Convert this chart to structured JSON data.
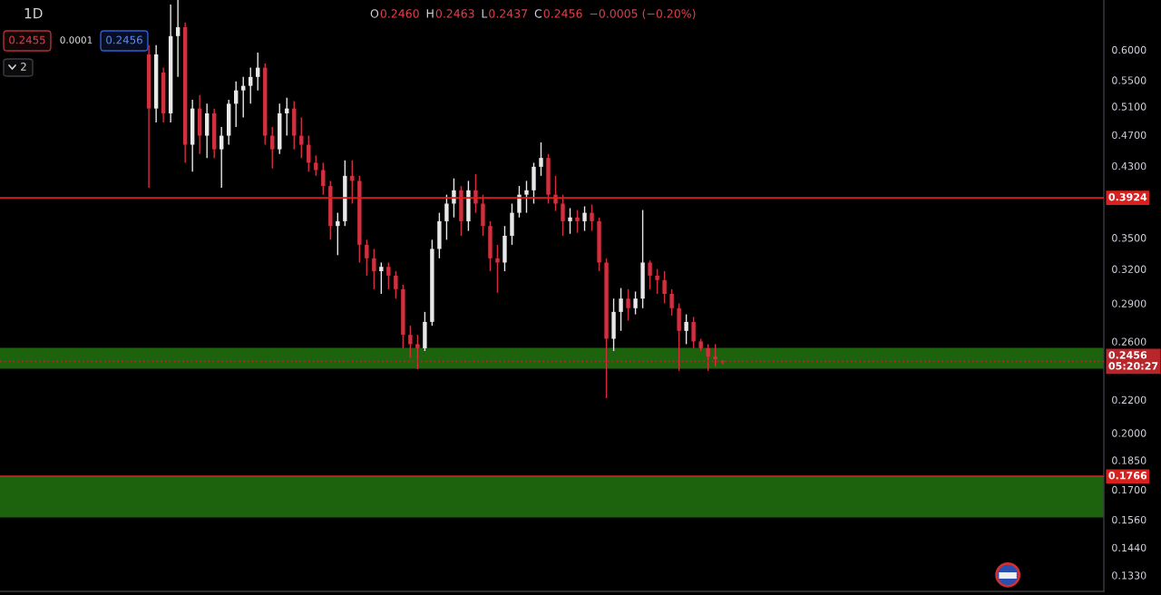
{
  "chart_data": {
    "type": "candlestick",
    "title": "1D",
    "categories": [
      null,
      null,
      null,
      null,
      null,
      null,
      null,
      null,
      null,
      null,
      null,
      null,
      null,
      null,
      null,
      null,
      null,
      null,
      null,
      null,
      null,
      null,
      null,
      null,
      null,
      null,
      null,
      null,
      null,
      null,
      null,
      null,
      null,
      null,
      null,
      null,
      null,
      null,
      null,
      null,
      null,
      null,
      null,
      null,
      null,
      null,
      null,
      null,
      null,
      null,
      null,
      null,
      null,
      null,
      null,
      null,
      null,
      null,
      null,
      null,
      null,
      null,
      null,
      null,
      null,
      null,
      null,
      null,
      null,
      null,
      null,
      null,
      null,
      null,
      null,
      null,
      null,
      null,
      null,
      null,
      null,
      null,
      null,
      null,
      null,
      null,
      null,
      null,
      null,
      null,
      null,
      null,
      null,
      null,
      null,
      null,
      null,
      null,
      null,
      null,
      null,
      null,
      null,
      null,
      null,
      null,
      null,
      null,
      null,
      null,
      null,
      null,
      null,
      null,
      null,
      null,
      null,
      null,
      null,
      null,
      null,
      null,
      null,
      null,
      null,
      null,
      null,
      null,
      null,
      null,
      null,
      null,
      null,
      null,
      null,
      null,
      null,
      null,
      null,
      null,
      null,
      null,
      null,
      null,
      null,
      null,
      null,
      null,
      null,
      null,
      null,
      null
    ],
    "ohlc": [
      null,
      null,
      null,
      null,
      null,
      null,
      null,
      null,
      null,
      null,
      null,
      null,
      null,
      null,
      null,
      null,
      null,
      null,
      null,
      null,
      [
        0.592,
        0.608,
        0.404,
        0.507
      ],
      [
        0.507,
        0.608,
        0.487,
        0.592
      ],
      [
        0.562,
        0.57,
        0.487,
        0.5
      ],
      [
        0.5,
        0.683,
        0.487,
        0.624
      ],
      [
        0.624,
        0.692,
        0.555,
        0.64
      ],
      [
        0.64,
        0.649,
        0.434,
        0.457
      ],
      [
        0.457,
        0.52,
        0.423,
        0.507
      ],
      [
        0.507,
        0.527,
        0.445,
        0.469
      ],
      [
        0.469,
        0.514,
        0.44,
        0.5
      ],
      [
        0.5,
        0.507,
        0.44,
        0.451
      ],
      [
        0.451,
        0.481,
        0.404,
        0.469
      ],
      [
        0.469,
        0.52,
        0.457,
        0.514
      ],
      [
        0.514,
        0.548,
        0.481,
        0.534
      ],
      [
        0.534,
        0.555,
        0.494,
        0.541
      ],
      [
        0.541,
        0.57,
        0.514,
        0.555
      ],
      [
        0.555,
        0.595,
        0.534,
        0.57
      ],
      [
        0.57,
        0.577,
        0.457,
        0.469
      ],
      [
        0.469,
        0.481,
        0.427,
        0.451
      ],
      [
        0.451,
        0.514,
        0.445,
        0.5
      ],
      [
        0.5,
        0.523,
        0.469,
        0.507
      ],
      [
        0.507,
        0.518,
        0.451,
        0.469
      ],
      [
        0.469,
        0.494,
        0.44,
        0.457
      ],
      [
        0.457,
        0.469,
        0.423,
        0.434
      ],
      [
        0.434,
        0.443,
        0.418,
        0.425
      ],
      [
        0.425,
        0.434,
        0.396,
        0.406
      ],
      [
        0.406,
        0.412,
        0.348,
        0.362
      ],
      [
        0.362,
        0.376,
        0.333,
        0.367
      ],
      [
        0.367,
        0.437,
        0.362,
        0.418
      ],
      [
        0.418,
        0.437,
        0.386,
        0.412
      ],
      [
        0.412,
        0.418,
        0.326,
        0.343
      ],
      [
        0.343,
        0.348,
        0.314,
        0.33
      ],
      [
        0.33,
        0.339,
        0.302,
        0.318
      ],
      [
        0.318,
        0.326,
        0.298,
        0.322
      ],
      [
        0.322,
        0.326,
        0.302,
        0.314
      ],
      [
        0.314,
        0.318,
        0.294,
        0.302
      ],
      [
        0.302,
        0.306,
        0.255,
        0.265
      ],
      [
        0.265,
        0.272,
        0.248,
        0.258
      ],
      [
        0.258,
        0.265,
        0.24,
        0.255
      ],
      [
        0.255,
        0.283,
        0.253,
        0.275
      ],
      [
        0.275,
        0.348,
        0.272,
        0.339
      ],
      [
        0.339,
        0.376,
        0.33,
        0.367
      ],
      [
        0.367,
        0.396,
        0.348,
        0.386
      ],
      [
        0.386,
        0.415,
        0.371,
        0.401
      ],
      [
        0.401,
        0.406,
        0.352,
        0.367
      ],
      [
        0.367,
        0.412,
        0.357,
        0.401
      ],
      [
        0.401,
        0.42,
        0.376,
        0.386
      ],
      [
        0.386,
        0.396,
        0.352,
        0.362
      ],
      [
        0.362,
        0.367,
        0.318,
        0.33
      ],
      [
        0.33,
        0.343,
        0.299,
        0.326
      ],
      [
        0.326,
        0.362,
        0.318,
        0.352
      ],
      [
        0.352,
        0.386,
        0.343,
        0.376
      ],
      [
        0.376,
        0.406,
        0.371,
        0.396
      ],
      [
        0.396,
        0.412,
        0.376,
        0.401
      ],
      [
        0.401,
        0.434,
        0.386,
        0.429
      ],
      [
        0.429,
        0.46,
        0.418,
        0.44
      ],
      [
        0.44,
        0.445,
        0.386,
        0.396
      ],
      [
        0.396,
        0.418,
        0.378,
        0.386
      ],
      [
        0.386,
        0.396,
        0.352,
        0.367
      ],
      [
        0.367,
        0.381,
        0.354,
        0.371
      ],
      [
        0.371,
        0.379,
        0.355,
        0.367
      ],
      [
        0.367,
        0.383,
        0.357,
        0.376
      ],
      [
        0.376,
        0.385,
        0.357,
        0.367
      ],
      [
        0.367,
        0.371,
        0.318,
        0.326
      ],
      [
        0.326,
        0.33,
        0.221,
        0.262
      ],
      [
        0.262,
        0.294,
        0.253,
        0.283
      ],
      [
        0.283,
        0.303,
        0.268,
        0.294
      ],
      [
        0.294,
        0.302,
        0.276,
        0.286
      ],
      [
        0.286,
        0.3,
        0.281,
        0.294
      ],
      [
        0.294,
        0.379,
        0.286,
        0.326
      ],
      [
        0.326,
        0.328,
        0.302,
        0.314
      ],
      [
        0.314,
        0.32,
        0.298,
        0.31
      ],
      [
        0.31,
        0.318,
        0.29,
        0.298
      ],
      [
        0.298,
        0.302,
        0.28,
        0.286
      ],
      [
        0.286,
        0.29,
        0.239,
        0.268
      ],
      [
        0.268,
        0.281,
        0.258,
        0.275
      ],
      [
        0.275,
        0.279,
        0.255,
        0.26
      ],
      [
        0.26,
        0.262,
        0.253,
        0.255
      ],
      [
        0.255,
        0.258,
        0.239,
        0.249
      ],
      [
        0.249,
        0.258,
        0.242,
        0.247
      ],
      [
        0.246,
        0.2463,
        0.2437,
        0.2456
      ],
      null,
      null,
      null,
      null,
      null,
      null,
      null,
      null,
      null,
      null,
      null,
      null,
      null,
      null,
      null,
      null,
      null,
      null,
      null,
      null,
      null,
      null,
      null,
      null,
      null,
      null,
      null,
      null,
      null,
      null,
      null,
      null,
      null,
      null,
      null,
      null,
      null,
      null,
      null,
      null,
      null,
      null,
      null,
      null,
      null,
      null,
      null,
      null,
      null,
      null,
      null,
      null
    ],
    "colors": [
      null,
      null,
      null,
      null,
      null,
      null,
      null,
      null,
      null,
      null,
      null,
      null,
      null,
      null,
      null,
      null,
      null,
      null,
      null,
      null,
      "#d32f3f",
      "#e8e8e8",
      "#d32f3f",
      "#e8e8e8",
      "#e8e8e8",
      "#d32f3f",
      "#e8e8e8",
      "#d32f3f",
      "#e8e8e8",
      "#d32f3f",
      "#e8e8e8",
      "#e8e8e8",
      "#e8e8e8",
      "#e8e8e8",
      "#e8e8e8",
      "#e8e8e8",
      "#d32f3f",
      "#d32f3f",
      "#e8e8e8",
      "#e8e8e8",
      "#d32f3f",
      "#d32f3f",
      "#d32f3f",
      "#d32f3f",
      "#d32f3f",
      "#d32f3f",
      "#e8e8e8",
      "#e8e8e8",
      "#d32f3f",
      "#d32f3f",
      "#d32f3f",
      "#d32f3f",
      "#e8e8e8",
      "#d32f3f",
      "#d32f3f",
      "#d32f3f",
      "#d32f3f",
      "#d32f3f",
      "#e8e8e8",
      "#e8e8e8",
      "#e8e8e8",
      "#e8e8e8",
      "#e8e8e8",
      "#d32f3f",
      "#e8e8e8",
      "#d32f3f",
      "#d32f3f",
      "#d32f3f",
      "#d32f3f",
      "#e8e8e8",
      "#e8e8e8",
      "#e8e8e8",
      "#e8e8e8",
      "#e8e8e8",
      "#e8e8e8",
      "#d32f3f",
      "#d32f3f",
      "#d32f3f",
      "#e8e8e8",
      "#d32f3f",
      "#e8e8e8",
      "#d32f3f",
      "#d32f3f",
      "#d32f3f",
      "#e8e8e8",
      "#e8e8e8",
      "#d32f3f",
      "#e8e8e8",
      "#e8e8e8",
      "#d32f3f",
      "#d32f3f",
      "#d32f3f",
      "#d32f3f",
      "#d32f3f",
      "#e8e8e8",
      "#d32f3f",
      "#d32f3f",
      "#d32f3f",
      "#d32f3f",
      "#d32f3f",
      null,
      null,
      null,
      null,
      null,
      null,
      null,
      null,
      null,
      null,
      null,
      null,
      null,
      null,
      null,
      null,
      null,
      null,
      null,
      null,
      null,
      null,
      null,
      null,
      null,
      null,
      null,
      null,
      null,
      null,
      null,
      null,
      null,
      null,
      null,
      null,
      null,
      null,
      null,
      null,
      null,
      null,
      null,
      null,
      null,
      null,
      null,
      null,
      null,
      null,
      null,
      null
    ],
    "log": true,
    "ylim": [
      0.127,
      0.692
    ],
    "yticks": [
      {
        "value": 0.6,
        "label": "0.6000"
      },
      {
        "value": 0.55,
        "label": "0.5500"
      },
      {
        "value": 0.51,
        "label": "0.5100"
      },
      {
        "value": 0.47,
        "label": "0.4700"
      },
      {
        "value": 0.43,
        "label": "0.4300"
      },
      {
        "value": 0.35,
        "label": "0.3500"
      },
      {
        "value": 0.32,
        "label": "0.3200"
      },
      {
        "value": 0.29,
        "label": "0.2900"
      },
      {
        "value": 0.26,
        "label": "0.2600"
      },
      {
        "value": 0.22,
        "label": "0.2200"
      },
      {
        "value": 0.2,
        "label": "0.2000"
      },
      {
        "value": 0.185,
        "label": "0.1850"
      },
      {
        "value": 0.17,
        "label": "0.1700"
      },
      {
        "value": 0.156,
        "label": "0.1560"
      },
      {
        "value": 0.144,
        "label": "0.1440"
      },
      {
        "value": 0.133,
        "label": "0.1330"
      }
    ],
    "tick_labels": "y",
    "bands": [
      {
        "axis": "y",
        "from": 0.2405,
        "to": 0.2553,
        "color": "#1d620c"
      },
      {
        "axis": "y",
        "from": 0.157,
        "to": 0.1766,
        "color": "#1d620c"
      }
    ],
    "ref_lines": [
      {
        "axis": "y",
        "value": 0.3924,
        "label": "0.3924",
        "color": "#d8201f"
      },
      {
        "axis": "y",
        "value": 0.1766,
        "label": "0.1766",
        "color": "#d8201f"
      },
      {
        "axis": "y",
        "value": 0.2456,
        "label": "0.2456\n05:20:27",
        "color": "#b8262c",
        "line_style": "dotted"
      }
    ],
    "annotations": [
      "O",
      "0.2460",
      "H",
      "0.2463",
      "L",
      "0.2437",
      "C",
      "0.2456",
      "−0.0005 (−0.20%)",
      "0.2455",
      "0.0001",
      "0.2456",
      "2"
    ]
  }
}
